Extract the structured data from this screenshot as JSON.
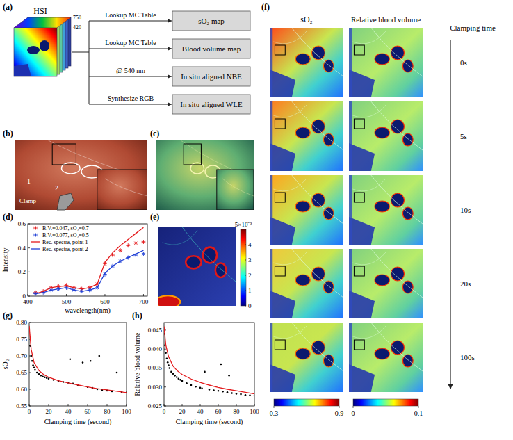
{
  "figure": {
    "panel_labels": [
      "(a)",
      "(b)",
      "(c)",
      "(d)",
      "(e)",
      "(f)",
      "(g)",
      "(h)"
    ],
    "a": {
      "cube_label": "HSI",
      "wavelength_labels": [
        "750",
        "420"
      ],
      "arrows": [
        {
          "label": "Lookup MC Table",
          "target": "sO₂ map"
        },
        {
          "label": "Lookup MC Table",
          "target": "Blood volume map"
        },
        {
          "label": "@ 540 nm",
          "target": "In situ aligned NBE"
        },
        {
          "label": "Synthesize RGB",
          "target": "In situ aligned WLE"
        }
      ]
    },
    "b": {
      "point_labels": [
        "1",
        "2"
      ],
      "tool_label": "Clamp"
    },
    "e": {
      "colorbar": {
        "range": [
          0,
          5
        ],
        "ticks": [
          0,
          1,
          2,
          3,
          4,
          {
            "value": 5,
            "label": "5×10⁻³"
          }
        ]
      }
    },
    "f": {
      "column_titles": [
        "sO₂",
        "Relative blood volume"
      ],
      "time_title": "Clamping time",
      "times": [
        "0s",
        "5s",
        "10s",
        "20s",
        "100s"
      ],
      "colorbars": [
        {
          "range": [
            0.3,
            0.9
          ],
          "ticks": [
            0.3,
            0.9
          ]
        },
        {
          "range": [
            0,
            0.1
          ],
          "ticks": [
            0,
            0.1
          ]
        }
      ]
    }
  },
  "chart_data": [
    {
      "type": "line",
      "xlabel": "wavelength(nm)",
      "ylabel": "Intensity",
      "xlim": [
        400,
        710
      ],
      "xticks": [
        400,
        500,
        600,
        700
      ],
      "ylim": [
        0,
        0.6
      ],
      "yticks": [
        0,
        0.2,
        0.4,
        0.6
      ],
      "grid": false,
      "legend": "upper left",
      "x": [
        420,
        440,
        460,
        480,
        500,
        520,
        540,
        560,
        580,
        600,
        620,
        640,
        660,
        680,
        700
      ],
      "series": [
        {
          "name": "B.V.=0.047, sO₂=0.7",
          "type": "scatter",
          "marker": "asterisk",
          "color": "#e41a1c",
          "values": [
            0.03,
            0.04,
            0.07,
            0.08,
            0.09,
            0.07,
            0.06,
            0.07,
            0.1,
            0.27,
            0.34,
            0.38,
            0.42,
            0.44,
            0.45
          ]
        },
        {
          "name": "B.V.=0.077, sO₂=0.5",
          "type": "scatter",
          "marker": "asterisk",
          "color": "#1f3fd6",
          "values": [
            0.02,
            0.03,
            0.05,
            0.06,
            0.07,
            0.05,
            0.04,
            0.05,
            0.07,
            0.18,
            0.25,
            0.29,
            0.32,
            0.34,
            0.35
          ]
        },
        {
          "name": "Rec. spectra, point 1",
          "type": "line",
          "line_style": "solid",
          "color": "#e41a1c",
          "values": [
            0.02,
            0.04,
            0.07,
            0.08,
            0.085,
            0.07,
            0.06,
            0.07,
            0.1,
            0.28,
            0.36,
            0.42,
            0.47,
            0.52,
            0.57
          ]
        },
        {
          "name": "Rec. spectra, point 2",
          "type": "line",
          "line_style": "solid",
          "color": "#1f3fd6",
          "values": [
            0.02,
            0.03,
            0.05,
            0.06,
            0.07,
            0.05,
            0.04,
            0.05,
            0.07,
            0.19,
            0.25,
            0.29,
            0.32,
            0.35,
            0.38
          ]
        }
      ]
    },
    {
      "type": "scatter",
      "xlabel": "Clamping time (second)",
      "ylabel": "sO₂",
      "xlim": [
        0,
        100
      ],
      "xticks": [
        0,
        20,
        40,
        60,
        80,
        100
      ],
      "ylim": [
        0.55,
        0.8
      ],
      "yticks": [
        0.55,
        {
          "value": 0.6,
          "label": "0.60"
        },
        0.65,
        {
          "value": 0.7,
          "label": "0.70"
        },
        0.75,
        {
          "value": 0.8,
          "label": "0.80"
        }
      ],
      "grid": false,
      "series": [
        {
          "type": "scatter",
          "marker": "point",
          "color": "#000000",
          "x": [
            0,
            1,
            2,
            3,
            4,
            5,
            6,
            8,
            10,
            12,
            14,
            16,
            18,
            20,
            25,
            30,
            35,
            40,
            42,
            45,
            50,
            55,
            60,
            63,
            65,
            70,
            72,
            75,
            80,
            85,
            90,
            95,
            100
          ],
          "values": [
            0.78,
            0.73,
            0.7,
            0.685,
            0.672,
            0.665,
            0.658,
            0.65,
            0.645,
            0.641,
            0.638,
            0.636,
            0.634,
            0.632,
            0.628,
            0.625,
            0.622,
            0.62,
            0.69,
            0.617,
            0.613,
            0.68,
            0.607,
            0.685,
            0.604,
            0.6,
            0.7,
            0.598,
            0.596,
            0.594,
            0.65,
            0.592,
            0.59
          ]
        },
        {
          "type": "line",
          "line_style": "solid",
          "color": "#e41a1c",
          "x": [
            0,
            2,
            5,
            10,
            15,
            20,
            30,
            40,
            50,
            60,
            70,
            80,
            90,
            100
          ],
          "values": [
            0.79,
            0.72,
            0.68,
            0.656,
            0.644,
            0.636,
            0.626,
            0.619,
            0.613,
            0.607,
            0.602,
            0.598,
            0.594,
            0.59
          ]
        }
      ]
    },
    {
      "type": "scatter",
      "xlabel": "Clamping time (second)",
      "ylabel": "Relative blood volume",
      "xlim": [
        0,
        100
      ],
      "xticks": [
        0,
        20,
        40,
        60,
        80,
        100
      ],
      "ylim": [
        0.025,
        0.047
      ],
      "yticks": [
        0.025,
        {
          "value": 0.03,
          "label": "0.030"
        },
        0.035,
        {
          "value": 0.04,
          "label": "0.040"
        },
        0.045
      ],
      "grid": false,
      "series": [
        {
          "type": "scatter",
          "marker": "point",
          "color": "#000000",
          "x": [
            0,
            1,
            2,
            3,
            4,
            5,
            6,
            8,
            10,
            12,
            14,
            16,
            18,
            20,
            25,
            30,
            35,
            40,
            42,
            45,
            50,
            55,
            60,
            63,
            65,
            70,
            72,
            75,
            80,
            85,
            90,
            95,
            100
          ],
          "values": [
            0.044,
            0.041,
            0.039,
            0.0375,
            0.0365,
            0.0357,
            0.035,
            0.034,
            0.0335,
            0.033,
            0.0326,
            0.0322,
            0.0319,
            0.0316,
            0.031,
            0.0305,
            0.0301,
            0.0298,
            0.0296,
            0.034,
            0.0293,
            0.0291,
            0.029,
            0.036,
            0.0288,
            0.0286,
            0.033,
            0.0284,
            0.0282,
            0.0281,
            0.0279,
            0.0278,
            0.0277
          ]
        },
        {
          "type": "line",
          "line_style": "solid",
          "color": "#e41a1c",
          "x": [
            0,
            2,
            5,
            10,
            15,
            20,
            30,
            40,
            50,
            60,
            70,
            80,
            90,
            100
          ],
          "values": [
            0.046,
            0.041,
            0.038,
            0.0355,
            0.0342,
            0.0333,
            0.0321,
            0.0312,
            0.0305,
            0.0299,
            0.0294,
            0.029,
            0.0286,
            0.0282
          ]
        }
      ]
    }
  ]
}
